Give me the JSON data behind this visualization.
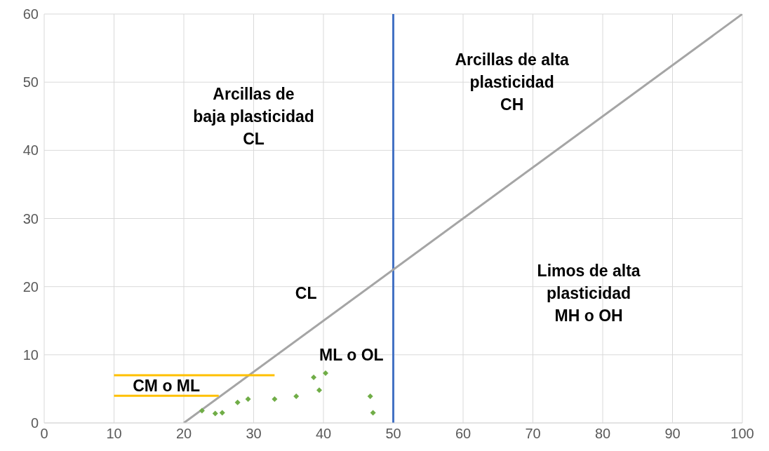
{
  "chart_data": {
    "type": "scatter",
    "xlim": [
      0,
      100
    ],
    "xticks": [
      0,
      10,
      20,
      30,
      40,
      50,
      60,
      70,
      80,
      90,
      100
    ],
    "ylim": [
      0,
      60
    ],
    "yticks": [
      0,
      10,
      20,
      30,
      40,
      50,
      60
    ],
    "grid": true,
    "marker": "diamond",
    "series": [
      {
        "type": "line",
        "color": "#a5a5a5",
        "x": [
          20,
          100
        ],
        "values": [
          0,
          60
        ],
        "marker": "none"
      },
      {
        "type": "line",
        "color": "#ffc000",
        "x": [
          10,
          33
        ],
        "values": [
          7,
          7
        ],
        "marker": "none"
      },
      {
        "type": "line",
        "color": "#ffc000",
        "x": [
          10,
          25
        ],
        "values": [
          4,
          4
        ],
        "marker": "none"
      },
      {
        "color": "#70ad47",
        "x": [
          22.6,
          24.5,
          25.5,
          27.7,
          29.2,
          33.0,
          36.1,
          38.6,
          39.4,
          40.3,
          46.7,
          47.1
        ],
        "values": [
          1.8,
          1.4,
          1.5,
          3.0,
          3.5,
          3.5,
          3.9,
          6.7,
          4.8,
          7.3,
          3.9,
          1.5
        ]
      }
    ],
    "ref_lines": [
      {
        "axis": "x",
        "value": 50,
        "color": "#4472c4"
      }
    ],
    "annotations": [
      "Arcillas de\nbaja plasticidad\nCL",
      "Arcillas de alta\nplasticidad\nCH",
      "CL",
      "Limos de alta\nplasticidad\nMH o OH",
      "ML o OL",
      "CM o ML"
    ]
  }
}
